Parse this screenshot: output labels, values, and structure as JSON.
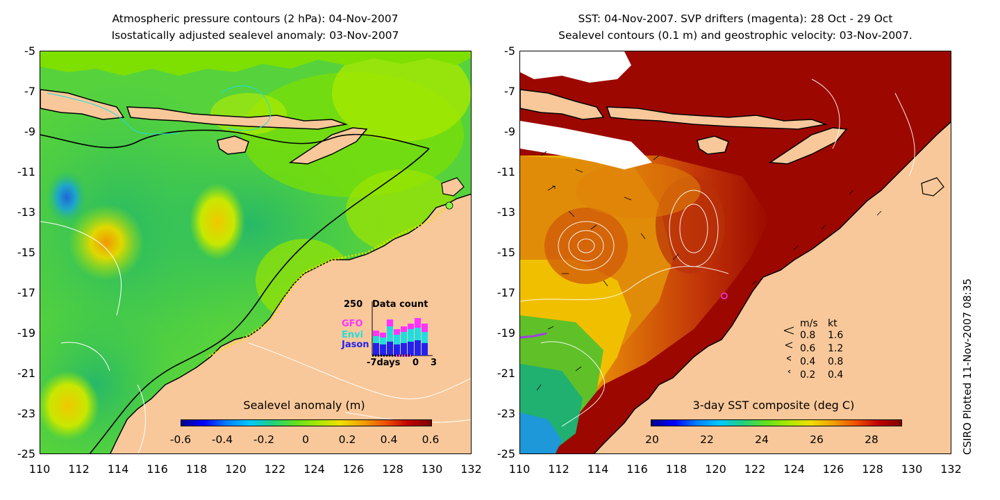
{
  "left": {
    "title_line1": "Atmospheric pressure contours (2 hPa): 04-Nov-2007",
    "title_line2": "Isostatically adjusted sealevel anomaly: 03-Nov-2007",
    "colorbar_title": "Sealevel anomaly (m)",
    "colorbar_ticks": [
      "-0.6",
      "-0.4",
      "-0.2",
      "0",
      "0.2",
      "0.4",
      "0.6"
    ],
    "inset": {
      "label_250": "250",
      "title": "Data count",
      "legend": [
        {
          "name": "GFO",
          "color": "#ff33ff"
        },
        {
          "name": "Envi",
          "color": "#22dddd"
        },
        {
          "name": "Jason",
          "color": "#2222ee"
        }
      ],
      "xlabel_left": "-7days",
      "xlabel_mid": "0",
      "xlabel_right": "3"
    }
  },
  "right": {
    "title_line1": "SST: 04-Nov-2007. SVP drifters (magenta): 28 Oct - 29 Oct",
    "title_line2": "Sealevel contours (0.1 m) and geostrophic velocity: 03-Nov-2007.",
    "colorbar_title": "3-day SST composite (deg C)",
    "colorbar_ticks": [
      "20",
      "22",
      "24",
      "26",
      "28"
    ],
    "velocity_legend": {
      "header_ms": "m/s",
      "header_kt": "kt",
      "rows": [
        {
          "ms": "0.8",
          "kt": "1.6"
        },
        {
          "ms": "0.6",
          "kt": "1.2"
        },
        {
          "ms": "0.4",
          "kt": "0.8"
        },
        {
          "ms": "0.2",
          "kt": "0.4"
        }
      ]
    }
  },
  "axes": {
    "y_ticks": [
      "-5",
      "-7",
      "-9",
      "-11",
      "-13",
      "-15",
      "-17",
      "-19",
      "-21",
      "-23",
      "-25"
    ],
    "x_ticks": [
      "110",
      "112",
      "114",
      "116",
      "118",
      "120",
      "122",
      "124",
      "126",
      "128",
      "130",
      "132"
    ]
  },
  "credit": "CSIRO Plotted 11-Nov-2007 08:35",
  "colors": {
    "land": "#f8c89a",
    "ocean_green": "#7ee000",
    "deep_green": "#2ec454",
    "sst_red": "#9c0800",
    "sst_orange": "#e07808"
  }
}
